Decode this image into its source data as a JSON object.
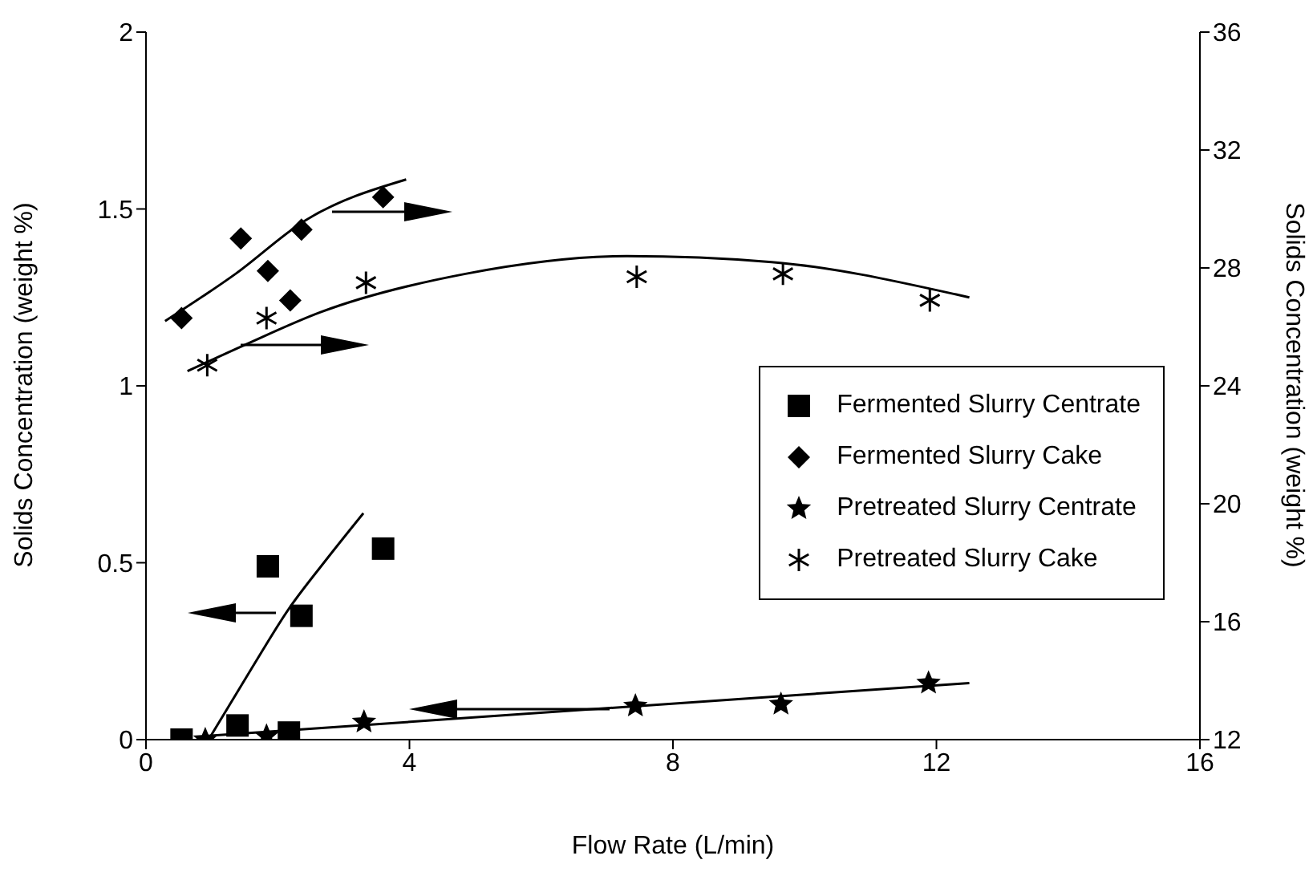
{
  "chart_data": {
    "type": "scatter",
    "xlabel": "Flow Rate (L/min)",
    "ylabel": "Solids Concentration (weight %)",
    "y2label": "Solids Concentration (weight %)",
    "xlim": [
      0,
      16
    ],
    "xticks": [
      0,
      4,
      8,
      12,
      16
    ],
    "ylim": [
      0,
      2
    ],
    "yticks": [
      0,
      0.5,
      1,
      1.5,
      2
    ],
    "y2lim": [
      12,
      36
    ],
    "y2ticks": [
      12,
      16,
      20,
      24,
      28,
      32,
      36
    ],
    "grid": false,
    "legend": "center right",
    "series": [
      {
        "name": "Fermented Slurry Centrate",
        "marker": "square",
        "color": "#000000",
        "x": [
          0.54,
          1.39,
          1.85,
          2.17,
          2.36,
          3.6
        ],
        "values": [
          0,
          0.04,
          0.49,
          0.02,
          0.35,
          0.54
        ]
      },
      {
        "name": "Fermented Slurry Cake",
        "marker": "diamond",
        "axis": "y2",
        "color": "#000000",
        "x": [
          0.54,
          1.44,
          1.85,
          2.19,
          2.36,
          3.6
        ],
        "values": [
          26.3,
          29.0,
          27.9,
          26.9,
          29.3,
          30.4
        ]
      },
      {
        "name": "Pretreated Slurry Centrate",
        "marker": "star",
        "color": "#000000",
        "x": [
          0.9,
          1.83,
          3.31,
          7.43,
          9.64,
          11.88
        ],
        "values": [
          0,
          0.01,
          0.05,
          0.095,
          0.1,
          0.16
        ]
      },
      {
        "name": "Pretreated Slurry Cake",
        "marker": "cross",
        "axis": "y2",
        "color": "#000000",
        "x": [
          0.93,
          1.83,
          3.34,
          7.45,
          9.67,
          11.9
        ],
        "values": [
          24.7,
          26.3,
          27.5,
          27.7,
          27.8,
          26.9
        ]
      },
      {
        "type": "line",
        "marker": "none",
        "color": "#000000",
        "x": [
          0.95,
          1.6,
          2.17,
          2.7,
          3.3
        ],
        "values": [
          0,
          0.2,
          0.37,
          0.5,
          0.64
        ]
      },
      {
        "type": "line",
        "marker": "none",
        "color": "#000000",
        "x": [
          0.9,
          12.5
        ],
        "values": [
          0.01,
          0.16
        ]
      },
      {
        "type": "line",
        "marker": "none",
        "axis": "y2",
        "color": "#000000",
        "x": [
          0.29,
          1.36,
          2.41,
          3.95
        ],
        "values": [
          26.2,
          27.8,
          29.6,
          31.0
        ]
      },
      {
        "type": "line",
        "marker": "none",
        "axis": "y2",
        "color": "#000000",
        "x": [
          0.63,
          1.51,
          2.65,
          4.85,
          7.3,
          9.5,
          12.3,
          12.5
        ],
        "values": [
          24.5,
          25.4,
          26.5,
          27.8,
          28.4,
          28.2,
          27.1,
          27.0
        ]
      }
    ]
  }
}
